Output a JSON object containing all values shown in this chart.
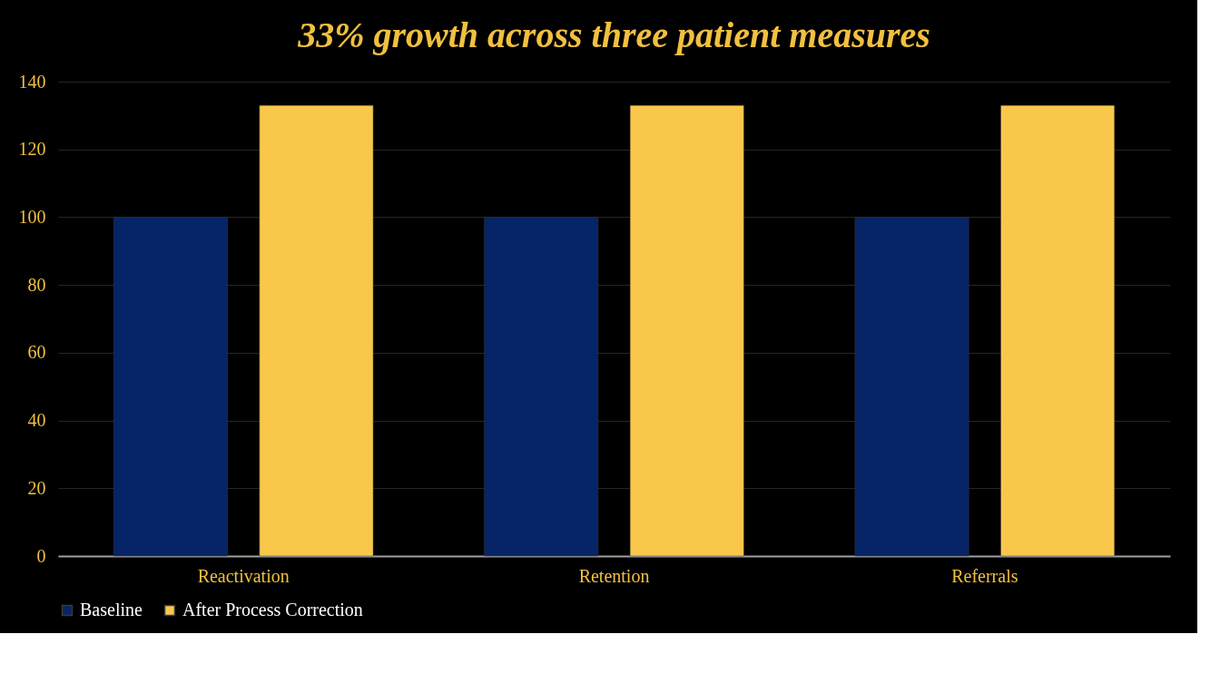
{
  "chart_data": {
    "type": "bar",
    "title": "33% growth across three patient measures",
    "categories": [
      "Reactivation",
      "Retention",
      "Referrals"
    ],
    "series": [
      {
        "name": "Baseline",
        "color": "#062466",
        "values": [
          100,
          100,
          100
        ]
      },
      {
        "name": "After Process Correction",
        "color": "#f9c84a",
        "values": [
          133,
          133,
          133
        ]
      }
    ],
    "ylim": [
      0,
      140
    ],
    "yticks": [
      0,
      20,
      40,
      60,
      80,
      100,
      120,
      140
    ],
    "grid": "y",
    "legend": "bottom"
  }
}
